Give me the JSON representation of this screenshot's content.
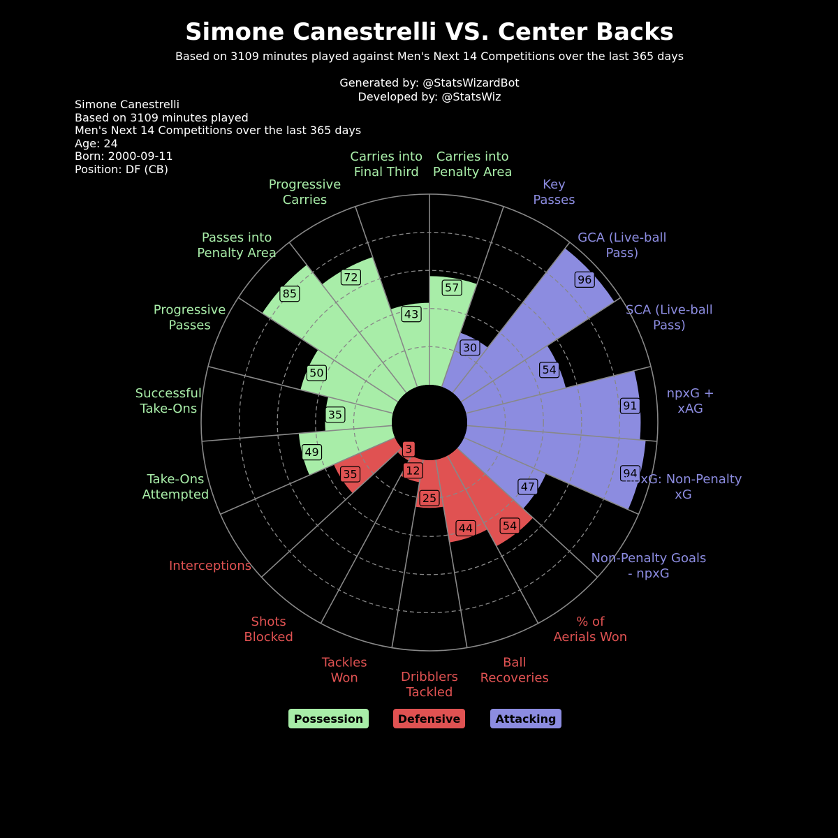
{
  "title": "Simone Canestrelli VS. Center Backs",
  "subtitle": "Based on 3109 minutes played against Men's Next 14 Competitions over the last 365 days",
  "credits": [
    "Generated by: @StatsWizardBot",
    "Developed by: @StatsWiz"
  ],
  "info": [
    "Simone Canestrelli",
    "Based on 3109 minutes played",
    "Men's Next 14 Competitions over the last 365 days",
    "Age: 24",
    "Born: 2000-09-11",
    "Position: DF (CB)"
  ],
  "colors": {
    "Possession": "#a8eda8",
    "Defensive": "#e05252",
    "Attacking": "#8c8ce0"
  },
  "legend": [
    {
      "label": "Possession",
      "group": "Possession"
    },
    {
      "label": "Defensive",
      "group": "Defensive"
    },
    {
      "label": "Attacking",
      "group": "Attacking"
    }
  ],
  "chart_data": {
    "type": "pie",
    "subtype": "polar-bar (pizza)",
    "scale": [
      0,
      100
    ],
    "grid": "dashed rings at 20, 40, 60, 80",
    "categories": [
      {
        "label": [
          "Carries into",
          "Penalty Area"
        ],
        "value": 57,
        "group": "Possession"
      },
      {
        "label": [
          "Key",
          "Passes"
        ],
        "value": 30,
        "group": "Attacking"
      },
      {
        "label": [
          "GCA (Live-ball",
          "Pass)"
        ],
        "value": 96,
        "group": "Attacking"
      },
      {
        "label": [
          "SCA (Live-ball",
          "Pass)"
        ],
        "value": 54,
        "group": "Attacking"
      },
      {
        "label": [
          "npxG +",
          "xAG"
        ],
        "value": 91,
        "group": "Attacking"
      },
      {
        "label": [
          "npxG: Non-Penalty",
          "xG"
        ],
        "value": 94,
        "group": "Attacking"
      },
      {
        "label": [
          "Non-Penalty Goals",
          "- npxG"
        ],
        "value": 47,
        "group": "Attacking"
      },
      {
        "label": [
          "% of",
          "Aerials Won"
        ],
        "value": 54,
        "group": "Defensive"
      },
      {
        "label": [
          "Ball",
          "Recoveries"
        ],
        "value": 44,
        "group": "Defensive"
      },
      {
        "label": [
          "Dribblers",
          "Tackled"
        ],
        "value": 25,
        "group": "Defensive"
      },
      {
        "label": [
          "Tackles",
          "Won"
        ],
        "value": 12,
        "group": "Defensive"
      },
      {
        "label": [
          "Shots",
          "Blocked"
        ],
        "value": 3,
        "group": "Defensive"
      },
      {
        "label": [
          "Interceptions"
        ],
        "value": 35,
        "group": "Defensive"
      },
      {
        "label": [
          "Take-Ons",
          "Attempted"
        ],
        "value": 49,
        "group": "Possession"
      },
      {
        "label": [
          "Successful",
          "Take-Ons"
        ],
        "value": 35,
        "group": "Possession"
      },
      {
        "label": [
          "Progressive",
          "Passes"
        ],
        "value": 50,
        "group": "Possession"
      },
      {
        "label": [
          "Passes into",
          "Penalty Area"
        ],
        "value": 85,
        "group": "Possession"
      },
      {
        "label": [
          "Progressive",
          "Carries"
        ],
        "value": 72,
        "group": "Possession"
      },
      {
        "label": [
          "Carries into",
          "Final Third"
        ],
        "value": 43,
        "group": "Possession"
      }
    ]
  }
}
